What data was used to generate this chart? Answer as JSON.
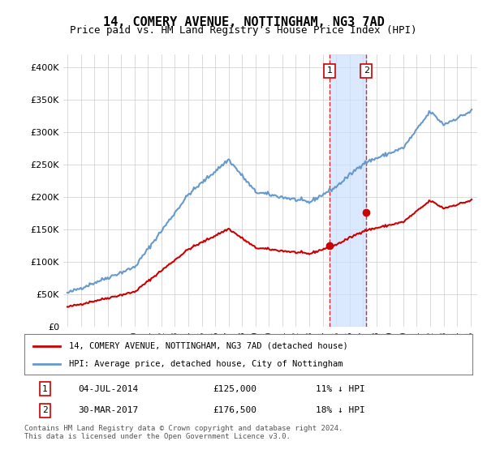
{
  "title": "14, COMERY AVENUE, NOTTINGHAM, NG3 7AD",
  "subtitle": "Price paid vs. HM Land Registry's House Price Index (HPI)",
  "legend_line1": "14, COMERY AVENUE, NOTTINGHAM, NG3 7AD (detached house)",
  "legend_line2": "HPI: Average price, detached house, City of Nottingham",
  "sale1_date": "04-JUL-2014",
  "sale1_price": 125000,
  "sale1_label": "1",
  "sale1_year": 2014.5,
  "sale2_date": "30-MAR-2017",
  "sale2_price": 176500,
  "sale2_label": "2",
  "sale2_year": 2017.25,
  "table_row1": "04-JUL-2014     £125,000     11% ↓ HPI",
  "table_row2": "30-MAR-2017     £176,500     18% ↓ HPI",
  "footnote": "Contains HM Land Registry data © Crown copyright and database right 2024.\nThis data is licensed under the Open Government Licence v3.0.",
  "red_color": "#cc0000",
  "blue_color": "#6699cc",
  "shade_color": "#cce0ff",
  "grid_color": "#cccccc",
  "bg_color": "#ffffff",
  "ylim": [
    0,
    420000
  ],
  "xlim_start": 1995,
  "xlim_end": 2025.5
}
